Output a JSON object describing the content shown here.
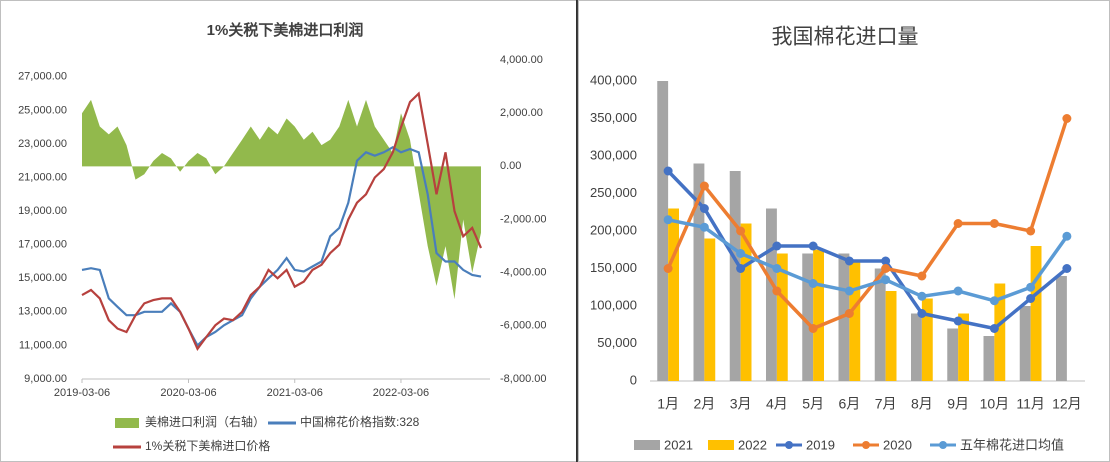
{
  "chart_data": [
    {
      "type": "line",
      "title": "1%关税下美棉进口利润",
      "x": [
        "2019-03-06",
        "2019-04-06",
        "2019-05-06",
        "2019-06-06",
        "2019-07-06",
        "2019-08-06",
        "2019-09-06",
        "2019-10-06",
        "2019-11-06",
        "2019-12-06",
        "2020-01-06",
        "2020-02-06",
        "2020-03-06",
        "2020-04-06",
        "2020-05-06",
        "2020-06-06",
        "2020-07-06",
        "2020-08-06",
        "2020-09-06",
        "2020-10-06",
        "2020-11-06",
        "2020-12-06",
        "2021-01-06",
        "2021-02-06",
        "2021-03-06",
        "2021-04-06",
        "2021-05-06",
        "2021-06-06",
        "2021-07-06",
        "2021-08-06",
        "2021-09-06",
        "2021-10-06",
        "2021-11-06",
        "2021-12-06",
        "2022-01-06",
        "2022-02-06",
        "2022-03-06",
        "2022-04-06",
        "2022-05-06",
        "2022-06-06",
        "2022-07-06",
        "2022-08-06",
        "2022-09-06",
        "2022-10-06",
        "2022-11-06",
        "2022-12-06"
      ],
      "series": [
        {
          "name": "美棉进口利润（右轴）",
          "type": "area",
          "axis": "y2",
          "color": "#92b94c",
          "values": [
            2000,
            2500,
            1500,
            1200,
            1500,
            800,
            -500,
            -300,
            200,
            500,
            300,
            -200,
            200,
            500,
            300,
            -300,
            0,
            500,
            1000,
            1500,
            1000,
            1500,
            1200,
            1800,
            1500,
            1000,
            1300,
            800,
            1000,
            1500,
            2500,
            1500,
            2500,
            1500,
            1000,
            500,
            2000,
            1000,
            -1000,
            -3000,
            -4500,
            -3000,
            -5000,
            -2000,
            -4000,
            -2500
          ]
        },
        {
          "name": "中国棉花价格指数:328",
          "type": "line",
          "color": "#4a7ebb",
          "values": [
            15500,
            15600,
            15500,
            13800,
            13300,
            12800,
            12800,
            13000,
            13000,
            13000,
            13500,
            13000,
            12000,
            11000,
            11500,
            11800,
            12200,
            12500,
            12800,
            13800,
            14500,
            15000,
            15500,
            16200,
            15500,
            15400,
            15700,
            16000,
            17500,
            18000,
            19500,
            22000,
            22500,
            22300,
            22500,
            22800,
            22500,
            22700,
            22500,
            20000,
            16500,
            16000,
            16000,
            15500,
            15200,
            15100
          ]
        },
        {
          "name": "1%关税下美棉进口价格",
          "type": "line",
          "color": "#b7413e",
          "values": [
            14000,
            14300,
            13800,
            12500,
            12000,
            11800,
            12800,
            13500,
            13700,
            13800,
            13800,
            13000,
            12000,
            10800,
            11500,
            12200,
            12600,
            12500,
            13000,
            14000,
            14500,
            15500,
            15000,
            15500,
            14500,
            14800,
            15500,
            15800,
            16500,
            17000,
            18500,
            19500,
            20000,
            21000,
            21500,
            22500,
            24000,
            25500,
            26000,
            23000,
            20000,
            22500,
            19000,
            17500,
            18000,
            16800
          ]
        }
      ],
      "xlim": [
        "2019-03-06",
        "2023-01-06"
      ],
      "xticks": [
        "2019-03-06",
        "2020-03-06",
        "2021-03-06",
        "2022-03-06"
      ],
      "ylim": [
        9000,
        28000
      ],
      "yticks": [
        {
          "value": 9000,
          "label": "9,000.00"
        },
        {
          "value": 11000,
          "label": "11,000.00"
        },
        {
          "value": 13000,
          "label": "13,000.00"
        },
        {
          "value": 15000,
          "label": "15,000.00"
        },
        {
          "value": 17000,
          "label": "17,000.00"
        },
        {
          "value": 19000,
          "label": "19,000.00"
        },
        {
          "value": 21000,
          "label": "21,000.00"
        },
        {
          "value": 23000,
          "label": "23,000.00"
        },
        {
          "value": 25000,
          "label": "25,000.00"
        },
        {
          "value": 27000,
          "label": "27,000.00"
        }
      ],
      "y2lim": [
        -8000,
        4000
      ],
      "y2ticks": [
        {
          "value": -8000,
          "label": "-8,000.00"
        },
        {
          "value": -6000,
          "label": "-6,000.00"
        },
        {
          "value": -4000,
          "label": "-4,000.00"
        },
        {
          "value": -2000,
          "label": "-2,000.00"
        },
        {
          "value": 0,
          "label": "0.00"
        },
        {
          "value": 2000,
          "label": "2,000.00"
        },
        {
          "value": 4000,
          "label": "4,000.00"
        }
      ]
    },
    {
      "type": "bar",
      "title": "我国棉花进口量",
      "categories": [
        "1月",
        "2月",
        "3月",
        "4月",
        "5月",
        "6月",
        "7月",
        "8月",
        "9月",
        "10月",
        "11月",
        "12月"
      ],
      "series": [
        {
          "name": "2021",
          "type": "bar",
          "color": "#a5a5a5",
          "values": [
            400000,
            290000,
            280000,
            230000,
            170000,
            170000,
            150000,
            90000,
            70000,
            60000,
            100000,
            140000
          ]
        },
        {
          "name": "2022",
          "type": "bar",
          "color": "#ffc000",
          "values": [
            230000,
            190000,
            210000,
            170000,
            175000,
            160000,
            120000,
            110000,
            90000,
            130000,
            180000,
            null
          ]
        },
        {
          "name": "2019",
          "type": "line",
          "color": "#4472c4",
          "values": [
            280000,
            230000,
            150000,
            180000,
            180000,
            160000,
            160000,
            90000,
            80000,
            70000,
            110000,
            150000
          ]
        },
        {
          "name": "2020",
          "type": "line",
          "color": "#ed7d31",
          "values": [
            150000,
            260000,
            200000,
            120000,
            70000,
            90000,
            150000,
            140000,
            210000,
            210000,
            200000,
            350000
          ]
        },
        {
          "name": "五年棉花进口均值",
          "type": "line",
          "color": "#5b9bd5",
          "values": [
            215000,
            205000,
            170000,
            150000,
            130000,
            120000,
            135000,
            113000,
            120000,
            107000,
            125000,
            193000
          ]
        }
      ],
      "ylim": [
        0,
        400000
      ],
      "yticks": [
        0,
        {
          "value": 50000,
          "label": "50,000"
        },
        {
          "value": 100000,
          "label": "100,000"
        },
        {
          "value": 150000,
          "label": "150,000"
        },
        {
          "value": 200000,
          "label": "200,000"
        },
        {
          "value": 250000,
          "label": "250,000"
        },
        {
          "value": 300000,
          "label": "300,000"
        },
        {
          "value": 350000,
          "label": "350,000"
        },
        {
          "value": 400000,
          "label": "400,000"
        }
      ]
    }
  ]
}
